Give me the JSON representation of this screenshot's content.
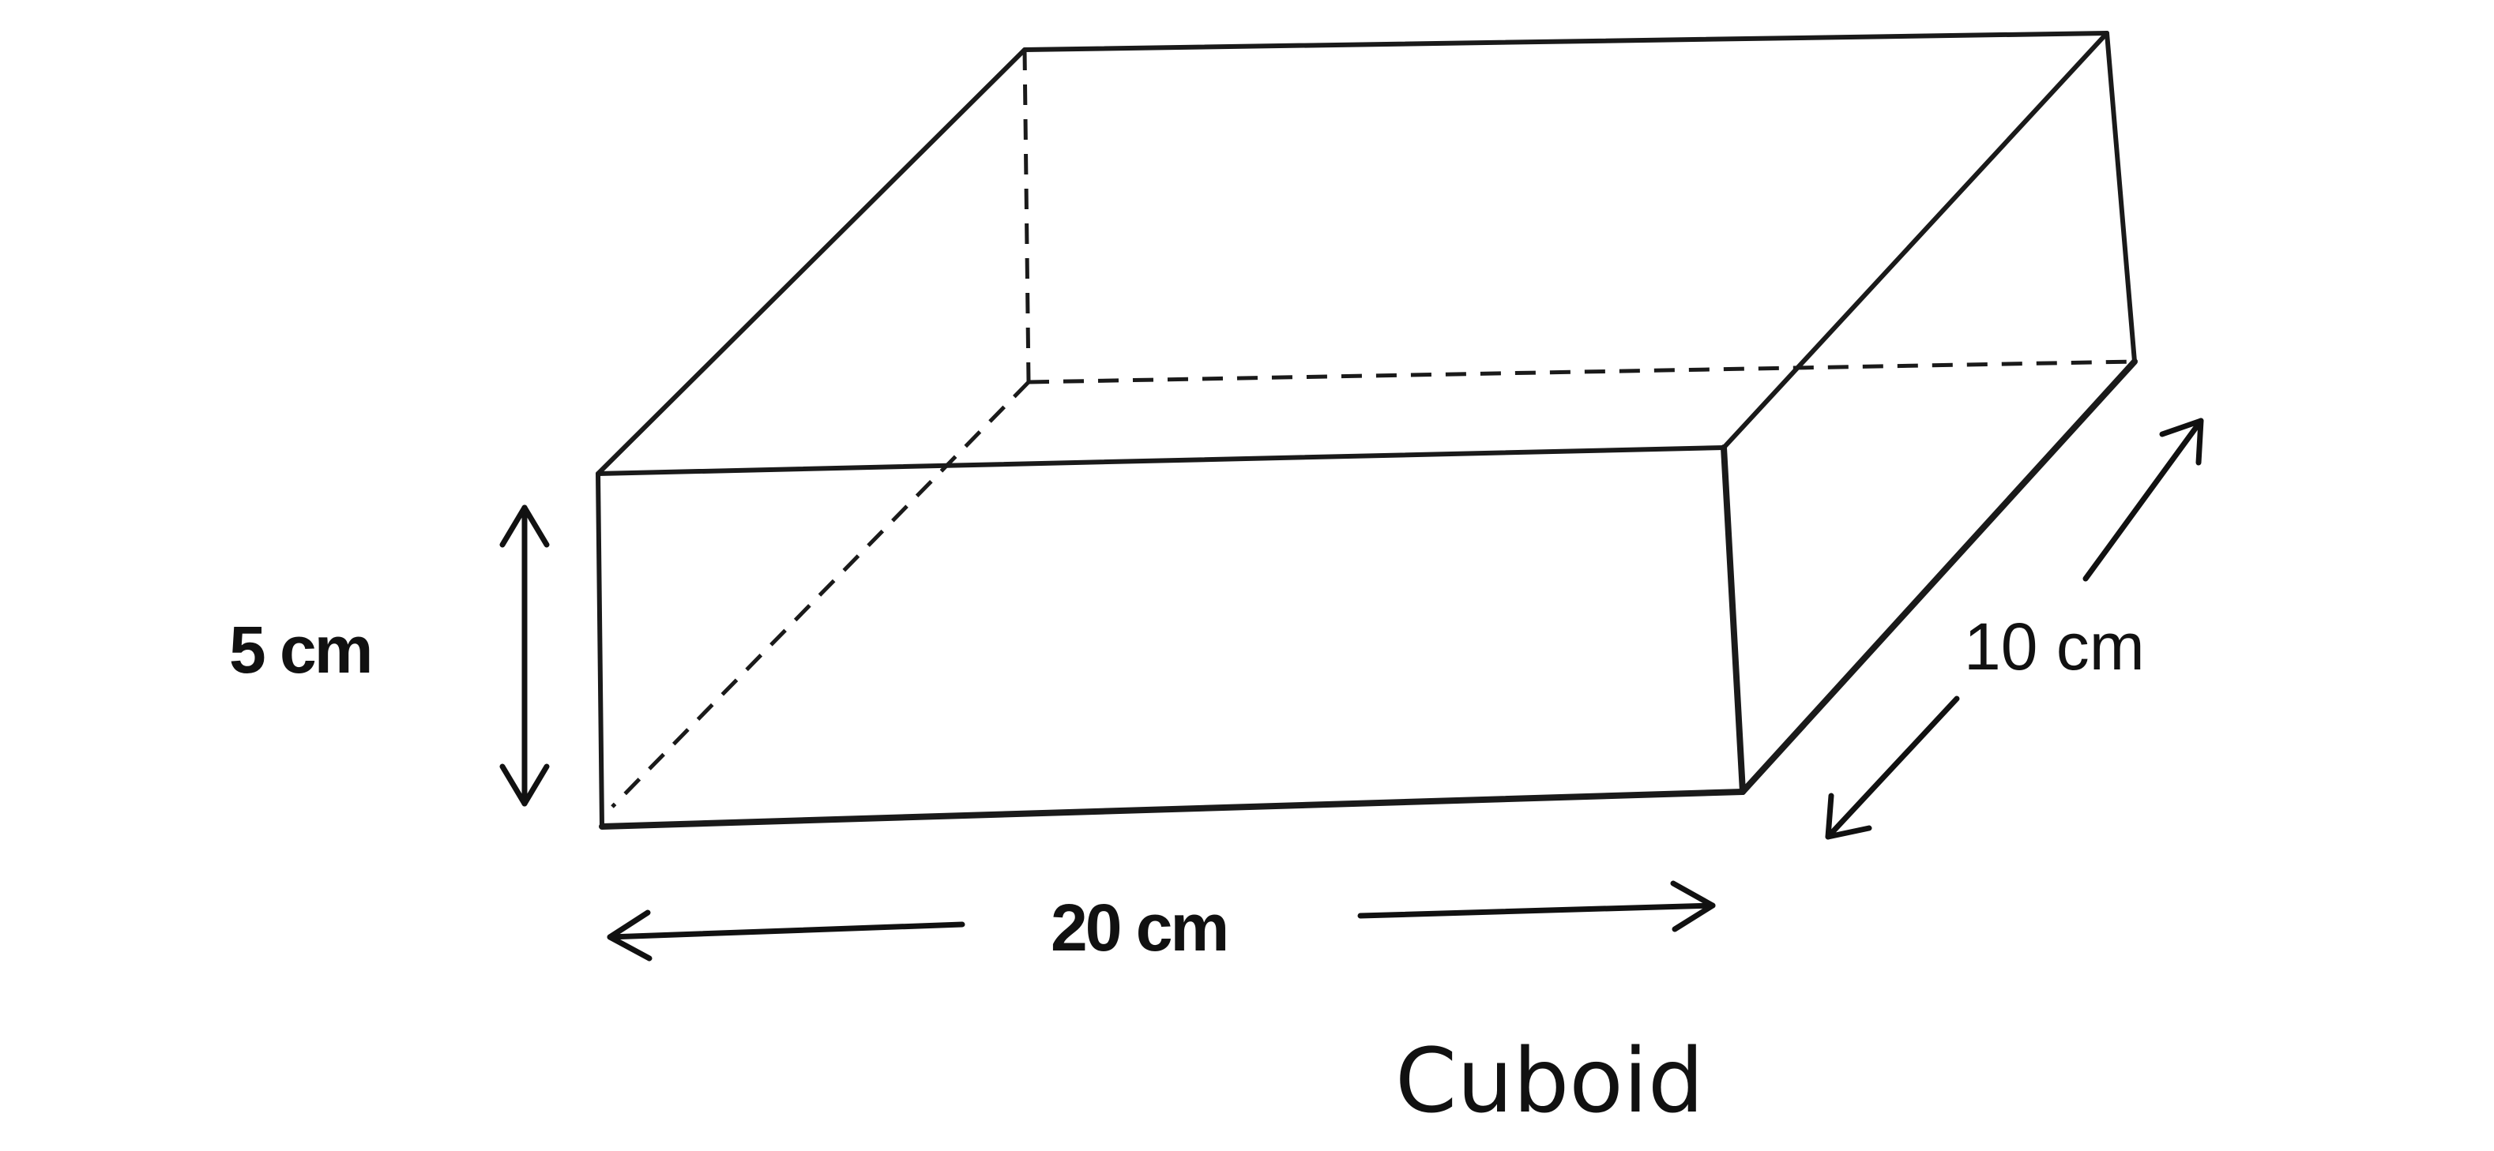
{
  "shape": {
    "name": "cuboid",
    "caption": "Cuboid"
  },
  "dimensions": {
    "height": "5 cm",
    "length": "20 cm",
    "width": "10 cm"
  },
  "colors": {
    "line": "#1a1a1a",
    "background": "#ffffff"
  }
}
